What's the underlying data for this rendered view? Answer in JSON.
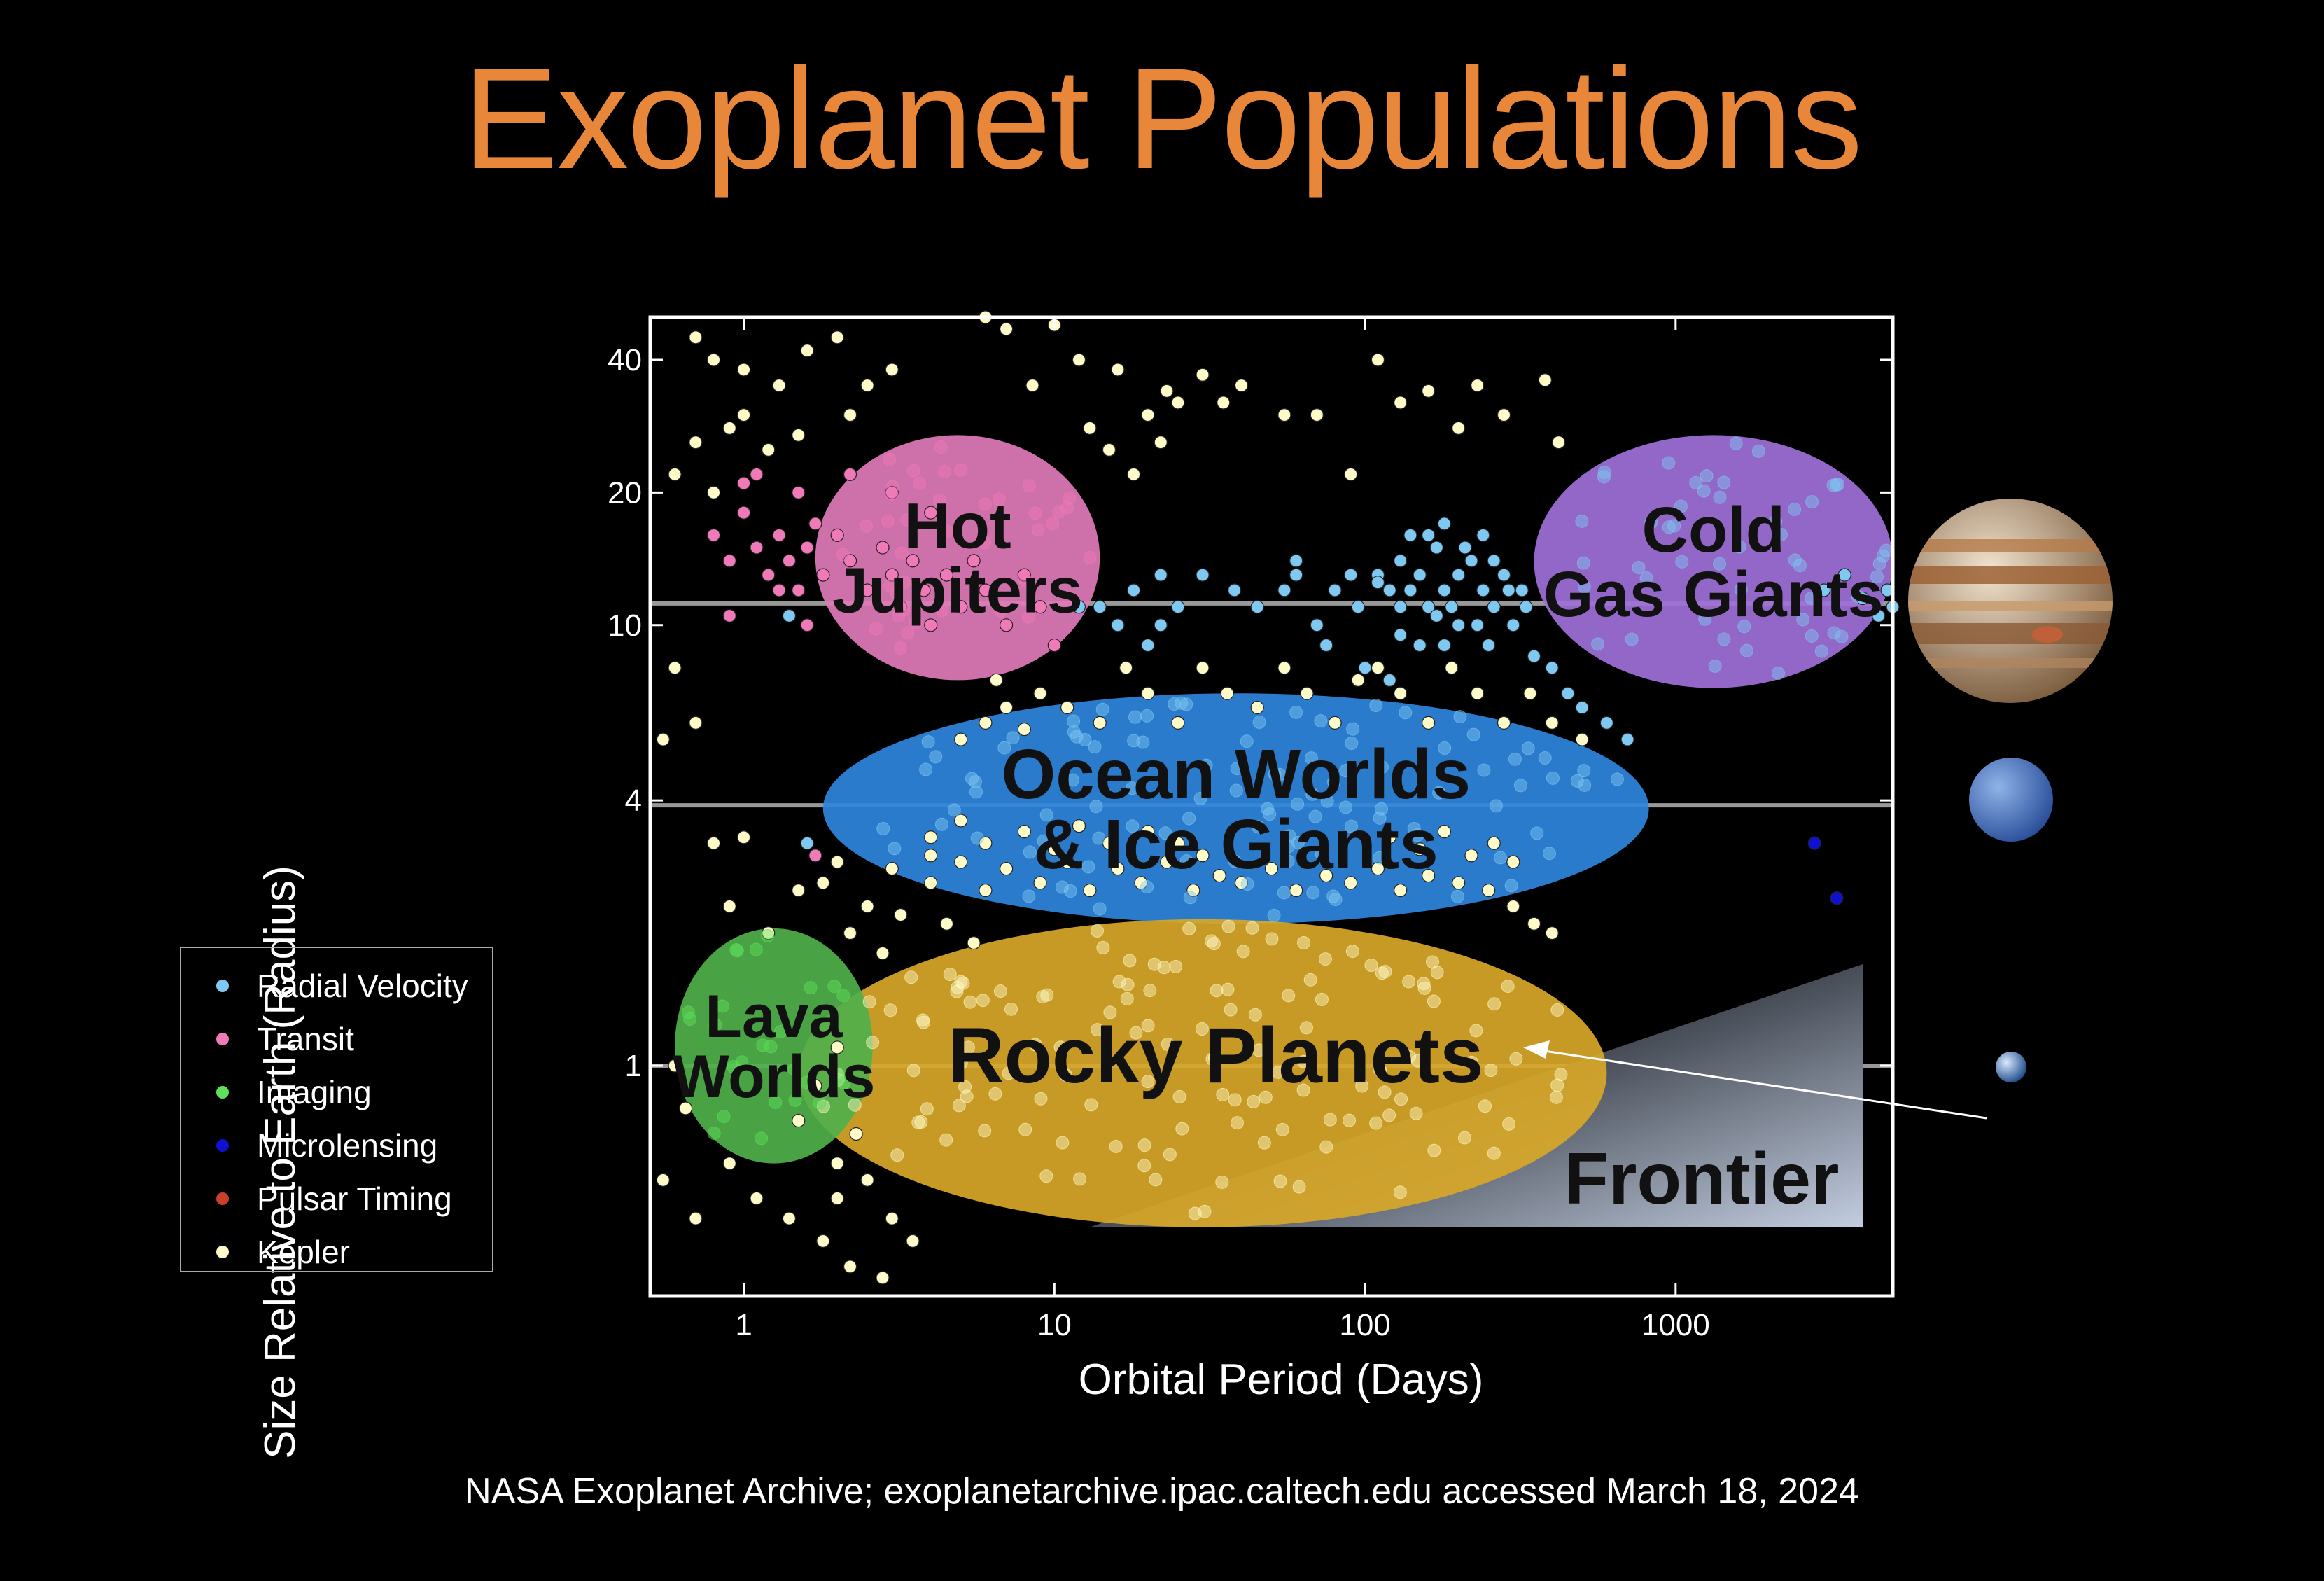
{
  "title": "Exoplanet Populations",
  "credit": "NASA Exoplanet Archive; exoplanetarchive.ipac.caltech.edu accessed March 18, 2024",
  "legend": [
    {
      "label": "Radial Velocity",
      "color": "#7ec8f2"
    },
    {
      "label": "Transit",
      "color": "#f07ab8"
    },
    {
      "label": "Imaging",
      "color": "#5ee05a"
    },
    {
      "label": "Microlensing",
      "color": "#1010d0"
    },
    {
      "label": "Pulsar Timing",
      "color": "#c8402a"
    },
    {
      "label": "Kepler",
      "color": "#fffbc8"
    }
  ],
  "chart_data": {
    "type": "scatter",
    "title": "Exoplanet Populations",
    "xlabel": "Orbital Period (Days)",
    "ylabel": "Size Relative to Earth (Radius)",
    "x_scale": "log",
    "y_scale": "log",
    "xlim": [
      0.5,
      5000
    ],
    "ylim": [
      0.3,
      50
    ],
    "x_ticks": [
      1,
      10,
      100,
      1000
    ],
    "x_tick_labels": [
      "1",
      "10",
      "100",
      "1000"
    ],
    "y_ticks": [
      1,
      4,
      10,
      20,
      40
    ],
    "y_tick_labels": [
      "1",
      "4",
      "10",
      "20",
      "40"
    ],
    "reference_lines": [
      {
        "y": 11.2,
        "color": "#999999"
      },
      {
        "y": 3.9,
        "color": "#999999"
      },
      {
        "y": 1.0,
        "color": "#999999"
      }
    ],
    "regions": [
      {
        "label": [
          "Hot",
          "Jupiters"
        ],
        "color": "#e07ab8",
        "center": [
          5,
          14
        ],
        "x_range": [
          1.7,
          14
        ],
        "y_range": [
          7.5,
          27
        ]
      },
      {
        "label": [
          "Cold",
          "Gas Giants"
        ],
        "color": "#a070d8",
        "center": [
          1100,
          14
        ],
        "x_range": [
          350,
          5000
        ],
        "y_range": [
          7.2,
          27
        ]
      },
      {
        "label": [
          "Ocean Worlds",
          "& Ice Giants"
        ],
        "color": "#2f86dd",
        "center": [
          34,
          3.9
        ],
        "x_range": [
          1.8,
          820
        ],
        "y_range": [
          2.1,
          7.0
        ]
      },
      {
        "label": [
          "Rocky Planets"
        ],
        "color": "#d8a728",
        "center": [
          33,
          1.0
        ],
        "x_range": [
          1.5,
          600
        ],
        "y_range": [
          0.43,
          2.15
        ]
      },
      {
        "label": [
          "Lava",
          "Worlds"
        ],
        "color": "#4fb04a",
        "center": [
          1.2,
          1.1
        ],
        "x_range": [
          0.6,
          2.6
        ],
        "y_range": [
          0.6,
          2.05
        ]
      },
      {
        "label": [
          "Frontier"
        ],
        "color": "#8a9bb5",
        "x_range": [
          13,
          4000
        ],
        "y_range": [
          0.43,
          1.7
        ]
      }
    ],
    "series": [
      {
        "name": "Radial Velocity",
        "color": "#7ec8f2",
        "points": [
          [
            14,
            11
          ],
          [
            18,
            12
          ],
          [
            22,
            13
          ],
          [
            25,
            11
          ],
          [
            30,
            13
          ],
          [
            38,
            12
          ],
          [
            45,
            11
          ],
          [
            55,
            12
          ],
          [
            60,
            13
          ],
          [
            70,
            10
          ],
          [
            80,
            12
          ],
          [
            95,
            11
          ],
          [
            110,
            13
          ],
          [
            120,
            12
          ],
          [
            130,
            14
          ],
          [
            140,
            12
          ],
          [
            150,
            13
          ],
          [
            160,
            11
          ],
          [
            170,
            15
          ],
          [
            180,
            12
          ],
          [
            200,
            13
          ],
          [
            220,
            14
          ],
          [
            240,
            12
          ],
          [
            260,
            11
          ],
          [
            280,
            13
          ],
          [
            300,
            10
          ],
          [
            320,
            12
          ],
          [
            150,
            9
          ],
          [
            180,
            9
          ],
          [
            200,
            10
          ],
          [
            250,
            9
          ],
          [
            350,
            8.5
          ],
          [
            400,
            8
          ],
          [
            500,
            6.5
          ],
          [
            600,
            6
          ],
          [
            22,
            10
          ],
          [
            20,
            9
          ],
          [
            16,
            10
          ],
          [
            12,
            11
          ],
          [
            130,
            11
          ],
          [
            140,
            16
          ],
          [
            160,
            16
          ],
          [
            180,
            17
          ],
          [
            210,
            15
          ],
          [
            240,
            16
          ],
          [
            110,
            12.5
          ],
          [
            90,
            13
          ],
          [
            190,
            11
          ],
          [
            230,
            10
          ],
          [
            260,
            14
          ],
          [
            290,
            12
          ],
          [
            330,
            11
          ],
          [
            130,
            9.5
          ],
          [
            170,
            10.5
          ],
          [
            60,
            14
          ],
          [
            75,
            9
          ],
          [
            100,
            8
          ],
          [
            120,
            7.5
          ],
          [
            1.6,
            3.2
          ],
          [
            5000,
            11
          ],
          [
            4800,
            12
          ],
          [
            4500,
            10.5
          ],
          [
            4000,
            11.5
          ],
          [
            3500,
            13
          ],
          [
            3000,
            12
          ],
          [
            1.4,
            10.5
          ],
          [
            450,
            7
          ],
          [
            700,
            5.5
          ]
        ]
      },
      {
        "name": "Transit",
        "color": "#f07ab8",
        "points": [
          [
            0.8,
            16
          ],
          [
            0.9,
            14
          ],
          [
            1.0,
            18
          ],
          [
            1.1,
            15
          ],
          [
            1.2,
            13
          ],
          [
            1.3,
            16
          ],
          [
            1.4,
            14
          ],
          [
            1.5,
            12
          ],
          [
            1.6,
            15
          ],
          [
            1.7,
            17
          ],
          [
            1.8,
            13
          ],
          [
            2.0,
            16
          ],
          [
            2.2,
            14
          ],
          [
            2.5,
            12
          ],
          [
            2.8,
            15
          ],
          [
            3.0,
            13
          ],
          [
            3.2,
            11
          ],
          [
            3.5,
            14
          ],
          [
            3.8,
            12
          ],
          [
            4.0,
            10
          ],
          [
            4.5,
            13
          ],
          [
            5.0,
            11
          ],
          [
            5.5,
            14
          ],
          [
            6.0,
            12
          ],
          [
            7.0,
            10
          ],
          [
            8.0,
            13
          ],
          [
            9.0,
            11
          ],
          [
            10.0,
            9
          ],
          [
            1.1,
            22
          ],
          [
            1.0,
            21
          ],
          [
            0.9,
            10.5
          ],
          [
            1.6,
            10
          ],
          [
            1.3,
            12
          ],
          [
            1.5,
            20
          ],
          [
            2.2,
            22
          ],
          [
            3.0,
            20
          ],
          [
            4.0,
            18
          ],
          [
            1.7,
            3.0
          ]
        ]
      },
      {
        "name": "Microlensing",
        "color": "#1010d0",
        "points": [
          [
            2800,
            3.2
          ],
          [
            3300,
            2.4
          ]
        ]
      },
      {
        "name": "Kepler",
        "color": "#fffbc8",
        "points": [
          [
            0.7,
            45
          ],
          [
            0.8,
            40
          ],
          [
            1.0,
            38
          ],
          [
            1.3,
            35
          ],
          [
            1.6,
            42
          ],
          [
            2.0,
            45
          ],
          [
            2.5,
            35
          ],
          [
            3.0,
            38
          ],
          [
            1.0,
            30
          ],
          [
            0.9,
            28
          ],
          [
            1.2,
            25
          ],
          [
            1.5,
            27
          ],
          [
            2.2,
            30
          ],
          [
            0.6,
            22
          ],
          [
            0.8,
            20
          ],
          [
            0.7,
            26
          ],
          [
            0.55,
            5.5
          ],
          [
            0.6,
            8
          ],
          [
            0.7,
            6
          ],
          [
            0.8,
            3.2
          ],
          [
            0.9,
            2.3
          ],
          [
            1.0,
            3.3
          ],
          [
            1.2,
            2.0
          ],
          [
            1.5,
            2.5
          ],
          [
            0.6,
            1.0
          ],
          [
            0.55,
            0.55
          ],
          [
            0.65,
            0.8
          ],
          [
            0.7,
            0.45
          ],
          [
            0.9,
            0.6
          ],
          [
            1.1,
            0.5
          ],
          [
            1.4,
            0.45
          ],
          [
            1.8,
            0.4
          ],
          [
            2.2,
            0.35
          ],
          [
            2.8,
            0.33
          ],
          [
            3.0,
            0.45
          ],
          [
            3.5,
            0.4
          ],
          [
            2.0,
            0.5
          ],
          [
            2.5,
            0.55
          ],
          [
            10,
            48
          ],
          [
            12,
            40
          ],
          [
            16,
            38
          ],
          [
            20,
            30
          ],
          [
            25,
            32
          ],
          [
            13,
            28
          ],
          [
            15,
            25
          ],
          [
            18,
            22
          ],
          [
            30,
            37
          ],
          [
            35,
            32
          ],
          [
            40,
            35
          ],
          [
            55,
            30
          ],
          [
            70,
            30
          ],
          [
            90,
            22
          ],
          [
            110,
            40
          ],
          [
            130,
            32
          ],
          [
            160,
            34
          ],
          [
            200,
            28
          ],
          [
            230,
            35
          ],
          [
            280,
            30
          ],
          [
            380,
            36
          ],
          [
            420,
            26
          ],
          [
            7,
            47
          ],
          [
            6,
            50
          ],
          [
            8.5,
            35
          ],
          [
            22,
            26
          ],
          [
            23,
            34
          ],
          [
            9,
            7
          ],
          [
            11,
            6.5
          ],
          [
            14,
            6
          ],
          [
            17,
            8
          ],
          [
            20,
            7
          ],
          [
            25,
            6
          ],
          [
            30,
            8
          ],
          [
            36,
            7
          ],
          [
            45,
            6.5
          ],
          [
            55,
            8
          ],
          [
            65,
            7
          ],
          [
            80,
            6
          ],
          [
            95,
            7.5
          ],
          [
            110,
            8
          ],
          [
            130,
            7
          ],
          [
            160,
            6
          ],
          [
            190,
            8
          ],
          [
            230,
            7
          ],
          [
            280,
            6
          ],
          [
            340,
            7
          ],
          [
            400,
            6
          ],
          [
            500,
            5.5
          ],
          [
            3,
            2.8
          ],
          [
            4,
            2.6
          ],
          [
            5,
            2.9
          ],
          [
            6,
            2.5
          ],
          [
            7,
            2.8
          ],
          [
            9,
            2.6
          ],
          [
            11,
            2.9
          ],
          [
            13,
            2.5
          ],
          [
            16,
            2.8
          ],
          [
            19,
            2.6
          ],
          [
            23,
            2.9
          ],
          [
            28,
            2.5
          ],
          [
            34,
            2.7
          ],
          [
            40,
            2.6
          ],
          [
            50,
            2.8
          ],
          [
            60,
            2.5
          ],
          [
            75,
            2.7
          ],
          [
            90,
            2.6
          ],
          [
            110,
            2.8
          ],
          [
            130,
            2.5
          ],
          [
            160,
            2.7
          ],
          [
            200,
            2.6
          ],
          [
            250,
            2.5
          ],
          [
            300,
            2.3
          ],
          [
            350,
            2.1
          ],
          [
            400,
            2.0
          ],
          [
            2.5,
            2.3
          ],
          [
            2.2,
            2.0
          ],
          [
            2.8,
            1.8
          ],
          [
            3.2,
            2.2
          ],
          [
            4.5,
            2.1
          ],
          [
            5.5,
            1.9
          ],
          [
            4,
            3.3
          ],
          [
            5,
            3.6
          ],
          [
            6,
            3.2
          ],
          [
            8,
            3.4
          ],
          [
            10,
            3.1
          ],
          [
            12,
            3.5
          ],
          [
            15,
            3.2
          ],
          [
            20,
            3.4
          ],
          [
            25,
            3.2
          ],
          [
            30,
            3.0
          ],
          [
            120,
            3.3
          ],
          [
            150,
            3.1
          ],
          [
            180,
            3.4
          ],
          [
            220,
            3.0
          ],
          [
            260,
            3.2
          ],
          [
            300,
            2.9
          ],
          [
            1.8,
            2.6
          ],
          [
            2.0,
            2.9
          ],
          [
            1.5,
            0.75
          ],
          [
            2.0,
            0.6
          ],
          [
            2.3,
            0.7
          ],
          [
            1.7,
            0.9
          ],
          [
            2.0,
            1.1
          ],
          [
            4,
            3.0
          ],
          [
            6,
            6
          ],
          [
            7,
            6.5
          ],
          [
            8,
            5.8
          ],
          [
            5,
            5.5
          ],
          [
            6.5,
            7.5
          ]
        ]
      }
    ],
    "region_fill_points": [
      {
        "name": "Transit",
        "color": "#f07ab8",
        "region": "Hot Jupiters"
      },
      {
        "name": "Radial Velocity",
        "color": "#7ec8f2",
        "region": "Cold Gas Giants"
      },
      {
        "name": "Radial Velocity",
        "color": "#7ec8f2",
        "region": "Ocean Worlds & Ice Giants"
      },
      {
        "name": "Kepler",
        "color": "#fffbc8",
        "region": "Rocky Planets"
      },
      {
        "name": "Imaging",
        "color": "#5ee05a",
        "region": "Lava Worlds"
      }
    ],
    "planet_images": [
      "jupiter-icon",
      "neptune-icon",
      "earth-icon"
    ]
  }
}
